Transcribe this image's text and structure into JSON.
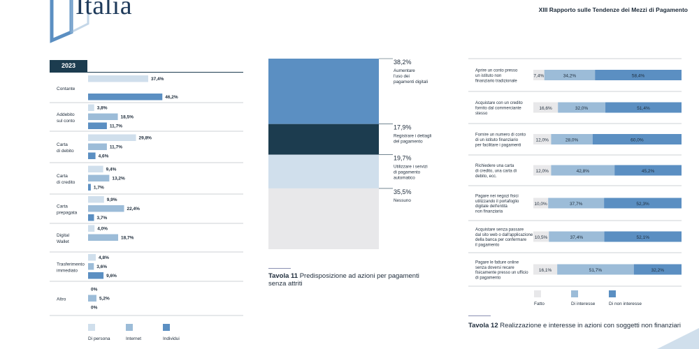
{
  "header": {
    "title": "Italia",
    "report": "XIII Rapporto sulle Tendenze dei Mezzi di Pagamento"
  },
  "colors": {
    "dark": "#1c3c4f",
    "light": "#d0dfec",
    "mid": "#9cbcd8",
    "strong": "#5b8fc2",
    "gray": "#e8e8ea"
  },
  "chart_data": [
    {
      "type": "bar",
      "orientation": "horizontal",
      "badge": "2023",
      "categories": [
        "Contante",
        "Addebito sul conto",
        "Carta di debito",
        "Carta di credito",
        "Carta prepagata",
        "Digital Wallet",
        "Trasferimento immediato",
        "Altro"
      ],
      "category_lines": [
        [
          "Contante"
        ],
        [
          "Addebito",
          "sul conto"
        ],
        [
          "Carta",
          "di debito"
        ],
        [
          "Carta",
          "di credito"
        ],
        [
          "Carta",
          "prepagata"
        ],
        [
          "Digital",
          "Wallet"
        ],
        [
          "Trasferimento",
          "immediato"
        ],
        [
          "Altro"
        ]
      ],
      "series": [
        {
          "name": "Di persona",
          "values": [
            37.4,
            3.8,
            29.8,
            9.4,
            9.9,
            4.0,
            4.8,
            0
          ]
        },
        {
          "name": "Internet",
          "values": [
            null,
            18.5,
            11.7,
            13.2,
            22.4,
            18.7,
            3.6,
            5.2
          ]
        },
        {
          "name": "Individui",
          "values": [
            46.2,
            11.7,
            4.6,
            1.7,
            3.7,
            null,
            9.6,
            0
          ]
        }
      ],
      "labels": [
        [
          "37,4%",
          "",
          "46,2%"
        ],
        [
          "3,8%",
          "18,5%",
          "11,7%"
        ],
        [
          "29,8%",
          "11,7%",
          "4,6%"
        ],
        [
          "9,4%",
          "13,2%",
          "1,7%"
        ],
        [
          "9,9%",
          "22,4%",
          "3,7%"
        ],
        [
          "4,0%",
          "18,7%",
          ""
        ],
        [
          "4,8%",
          "3,6%",
          "9,6%"
        ],
        [
          "0%",
          "5,2%",
          "0%"
        ]
      ],
      "legend": [
        "Di persona",
        "Internet",
        "Individui"
      ]
    },
    {
      "type": "bar",
      "orientation": "stacked-vertical",
      "caption_number": "Tavola 11",
      "caption_text": "Predisposizione ad azioni per pagamenti senza attriti",
      "segments": [
        {
          "value": 38.2,
          "label": "38,2%",
          "text_lines": [
            "Aumentare",
            "l'uso dei",
            "pagamenti digitali"
          ]
        },
        {
          "value": 17.9,
          "label": "17,9%",
          "text_lines": [
            "Registrare i dettagli",
            "del pagamento"
          ]
        },
        {
          "value": 19.7,
          "label": "19,7%",
          "text_lines": [
            "Utilizzare i servizi",
            "di pagamento",
            "automatico"
          ]
        },
        {
          "value": 35.5,
          "label": "35,5%",
          "text_lines": [
            "Nessuno"
          ]
        }
      ]
    },
    {
      "type": "bar",
      "orientation": "stacked-horizontal",
      "caption_number": "Tavola 12",
      "caption_text": "Realizzazione e interesse in azioni con soggetti non finanziari",
      "rows": [
        {
          "lines": [
            "Aprire un conto presso",
            "un istituto non",
            "finanziario tradizionale"
          ],
          "values": [
            7.4,
            34.2,
            58.4
          ],
          "labels": [
            "7,4%",
            "34,2%",
            "58,4%"
          ]
        },
        {
          "lines": [
            "Acquistare con un credito",
            "fornito dal commerciante",
            "stesso"
          ],
          "values": [
            16.6,
            32.0,
            51.4
          ],
          "labels": [
            "16,6%",
            "32,0%",
            "51,4%"
          ]
        },
        {
          "lines": [
            "Fornire un numero di conto",
            "di un istituto finanziario",
            "per facilitare i pagamenti"
          ],
          "values": [
            12.0,
            28.0,
            60.0
          ],
          "labels": [
            "12,0%",
            "28,0%",
            "60,0%"
          ]
        },
        {
          "lines": [
            "Richiedere una carta",
            "di credito, una carta di",
            "debito, ecc."
          ],
          "values": [
            12.0,
            42.8,
            45.2
          ],
          "labels": [
            "12,0%",
            "42,8%",
            "45,2%"
          ]
        },
        {
          "lines": [
            "Pagare nei negozi fisici",
            "utilizzando il portafoglio",
            "digitale dell'entità",
            "non finanziaria"
          ],
          "values": [
            10.0,
            37.7,
            52.3
          ],
          "labels": [
            "10,0%",
            "37,7%",
            "52,3%"
          ]
        },
        {
          "lines": [
            "Acquistare senza passare",
            "dal sito web o dall'applicazione",
            "della banca per confermare",
            "il pagamento"
          ],
          "values": [
            10.5,
            37.4,
            52.1
          ],
          "labels": [
            "10,5%",
            "37,4%",
            "52,1%"
          ]
        },
        {
          "lines": [
            "Pagare le fatture online",
            "senza doversi recare",
            "fisicamente presso un ufficio",
            "di pagamento"
          ],
          "values": [
            16.1,
            51.7,
            32.2
          ],
          "labels": [
            "16,1%",
            "51,7%",
            "32,2%"
          ]
        }
      ],
      "legend": [
        "Fatto",
        "Di interesse",
        "Di non interesse"
      ]
    }
  ]
}
